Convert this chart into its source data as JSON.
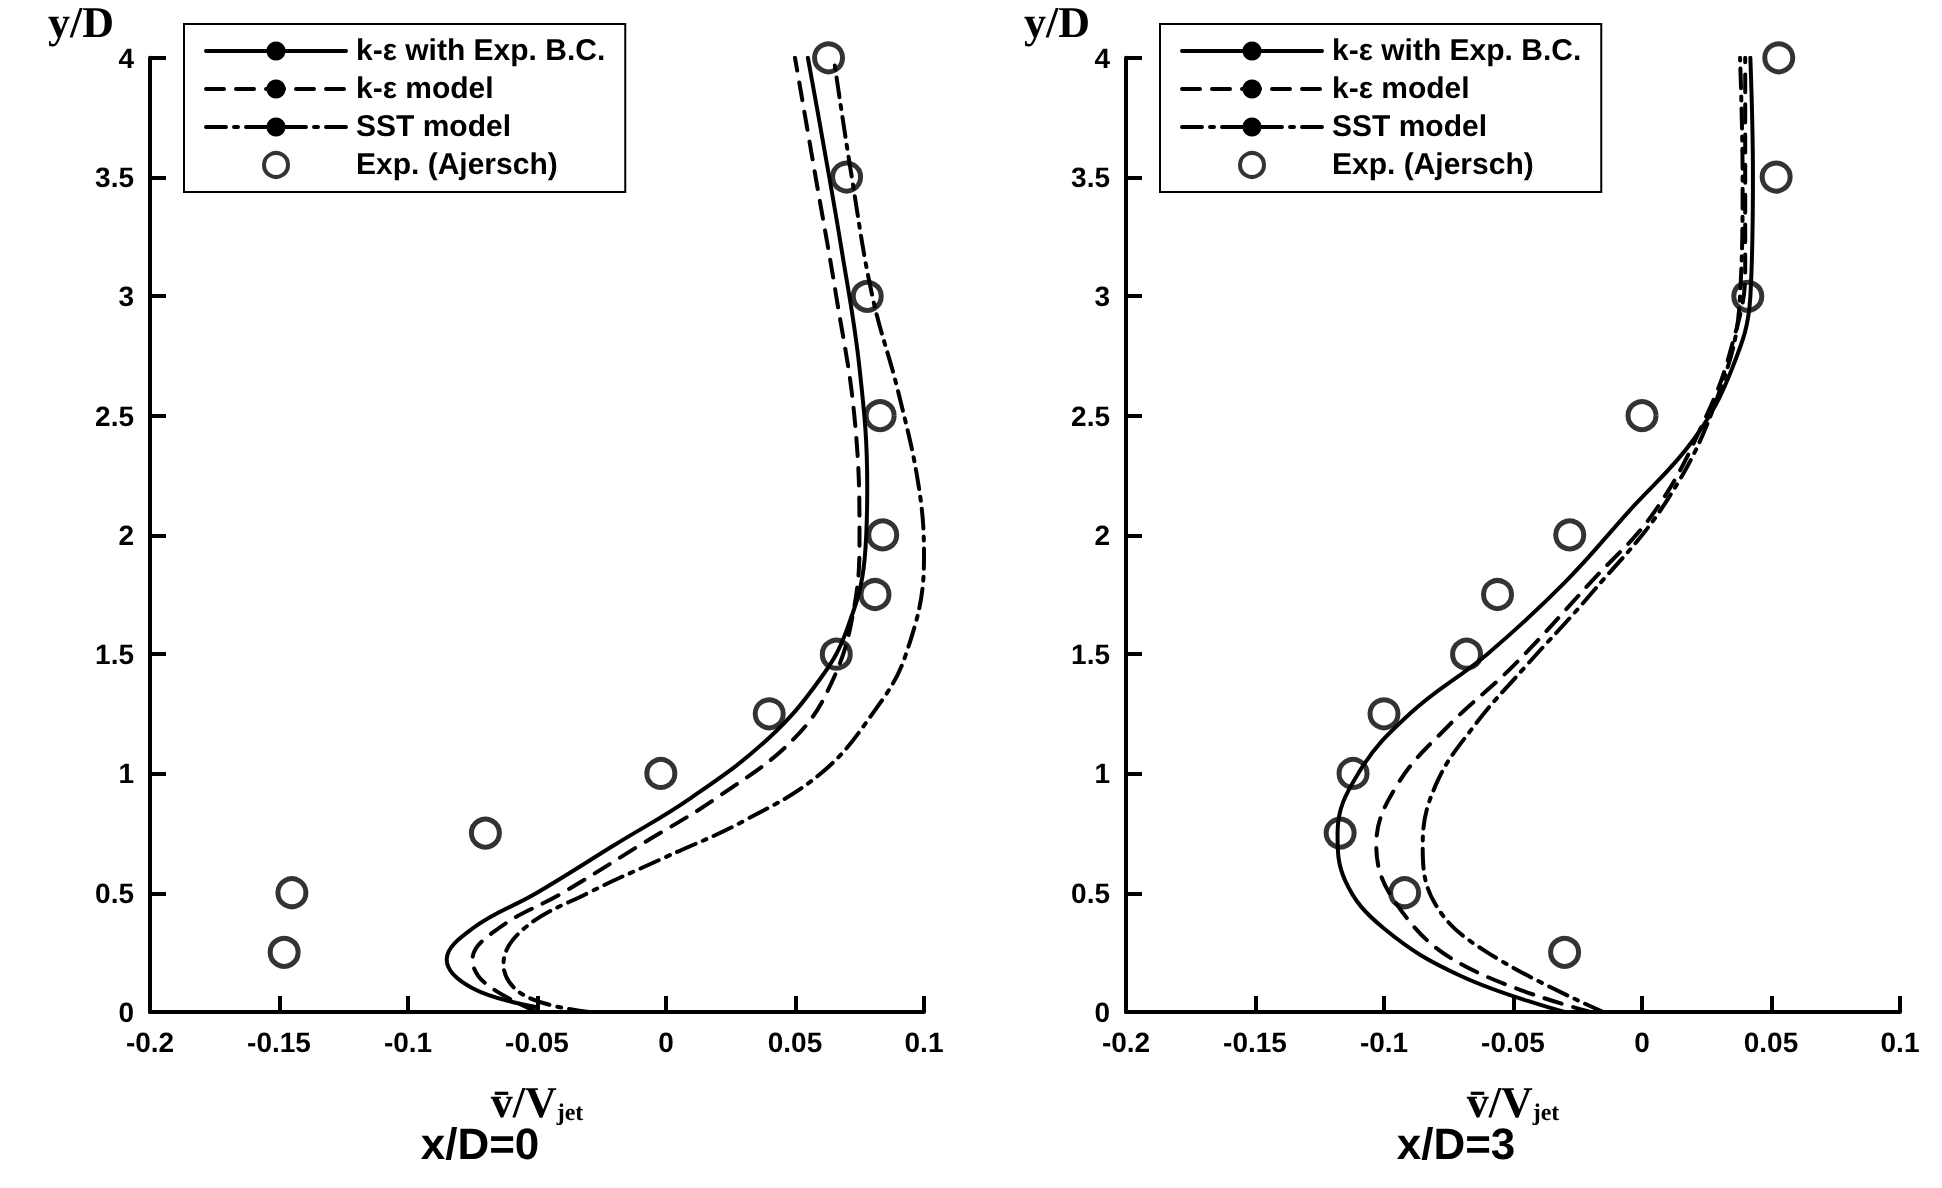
{
  "chart_data": [
    {
      "type": "line",
      "title": "x/D=0",
      "xlabel": "v̄/V$_{jet}$",
      "ylabel": "y/D",
      "xlim": [
        -0.2,
        0.1
      ],
      "xticks": [
        -0.2,
        -0.15,
        -0.1,
        -0.05,
        0,
        0.05,
        0.1
      ],
      "ylim": [
        0,
        4
      ],
      "yticks": [
        0,
        0.5,
        1,
        1.5,
        2,
        2.5,
        3,
        3.5,
        4
      ],
      "grid": false,
      "legend": "top left",
      "series": [
        {
          "name": "k-ε with Exp. B.C.",
          "color": "#000000",
          "line_style": "solid",
          "marker": "none",
          "x": [
            -0.05,
            -0.075,
            -0.085,
            -0.075,
            -0.05,
            -0.02,
            0.01,
            0.04,
            0.06,
            0.07,
            0.077,
            0.078,
            0.075,
            0.068,
            0.06,
            0.055
          ],
          "values": [
            0.02,
            0.1,
            0.22,
            0.35,
            0.5,
            0.7,
            0.9,
            1.15,
            1.4,
            1.6,
            1.9,
            2.2,
            2.7,
            3.2,
            3.7,
            4.0
          ]
        },
        {
          "name": "k-ε model",
          "color": "#000000",
          "line_style": "dashed",
          "marker": "none",
          "x": [
            -0.05,
            -0.07,
            -0.075,
            -0.065,
            -0.04,
            -0.01,
            0.02,
            0.05,
            0.065,
            0.073,
            0.075,
            0.073,
            0.066,
            0.058,
            0.05
          ],
          "values": [
            0.0,
            0.12,
            0.22,
            0.35,
            0.5,
            0.7,
            0.9,
            1.15,
            1.4,
            1.7,
            2.0,
            2.5,
            3.0,
            3.5,
            4.0
          ]
        },
        {
          "name": "SST model",
          "color": "#000000",
          "line_style": "dashdot",
          "marker": "none",
          "x": [
            -0.03,
            -0.055,
            -0.063,
            -0.055,
            -0.03,
            0.0,
            0.03,
            0.06,
            0.08,
            0.093,
            0.1,
            0.098,
            0.09,
            0.08,
            0.072,
            0.065
          ],
          "values": [
            0.0,
            0.07,
            0.2,
            0.35,
            0.5,
            0.65,
            0.8,
            1.0,
            1.25,
            1.5,
            1.9,
            2.2,
            2.6,
            3.0,
            3.5,
            4.0
          ]
        },
        {
          "name": "Exp. (Ajersch)",
          "type": "scatter",
          "color": "#000000",
          "marker": "circle",
          "x": [
            -0.148,
            -0.145,
            -0.07,
            -0.002,
            0.04,
            0.066,
            0.081,
            0.084,
            0.083,
            0.078,
            0.07,
            0.063
          ],
          "values": [
            0.25,
            0.5,
            0.75,
            1.0,
            1.25,
            1.5,
            1.75,
            2.0,
            2.5,
            3.0,
            3.5,
            4.0
          ]
        }
      ]
    },
    {
      "type": "line",
      "title": "x/D=3",
      "xlabel": "v̄/V$_{jet}$",
      "ylabel": "y/D",
      "xlim": [
        -0.2,
        0.1
      ],
      "xticks": [
        -0.2,
        -0.15,
        -0.1,
        -0.05,
        0,
        0.05,
        0.1
      ],
      "ylim": [
        0,
        4
      ],
      "yticks": [
        0,
        0.5,
        1,
        1.5,
        2,
        2.5,
        3,
        3.5,
        4
      ],
      "grid": false,
      "legend": "top left",
      "series": [
        {
          "name": "k-ε with Exp. B.C.",
          "color": "#000000",
          "line_style": "solid",
          "marker": "none",
          "x": [
            -0.03,
            -0.07,
            -0.1,
            -0.115,
            -0.118,
            -0.11,
            -0.09,
            -0.06,
            -0.03,
            -0.005,
            0.02,
            0.035,
            0.042,
            0.043,
            0.042
          ],
          "values": [
            0.0,
            0.15,
            0.35,
            0.55,
            0.75,
            1.0,
            1.25,
            1.5,
            1.8,
            2.1,
            2.4,
            2.7,
            3.0,
            3.5,
            4.0
          ]
        },
        {
          "name": "k-ε model",
          "color": "#000000",
          "line_style": "dashed",
          "marker": "none",
          "x": [
            -0.02,
            -0.07,
            -0.095,
            -0.103,
            -0.095,
            -0.075,
            -0.05,
            -0.02,
            0.005,
            0.025,
            0.035,
            0.04,
            0.04,
            0.04
          ],
          "values": [
            0.0,
            0.2,
            0.45,
            0.7,
            0.95,
            1.2,
            1.45,
            1.8,
            2.1,
            2.5,
            2.8,
            3.1,
            3.5,
            4.0
          ]
        },
        {
          "name": "SST model",
          "color": "#000000",
          "line_style": "dashdot",
          "marker": "none",
          "x": [
            -0.015,
            -0.06,
            -0.08,
            -0.085,
            -0.08,
            -0.065,
            -0.045,
            -0.02,
            0.01,
            0.03,
            0.038,
            0.039,
            0.038
          ],
          "values": [
            0.0,
            0.25,
            0.45,
            0.7,
            0.95,
            1.2,
            1.45,
            1.75,
            2.15,
            2.6,
            3.0,
            3.5,
            4.0
          ]
        },
        {
          "name": "Exp. (Ajersch)",
          "type": "scatter",
          "color": "#000000",
          "marker": "circle",
          "x": [
            -0.03,
            -0.092,
            -0.117,
            -0.112,
            -0.1,
            -0.068,
            -0.056,
            -0.028,
            0.0,
            0.041,
            0.052,
            0.053
          ],
          "values": [
            0.25,
            0.5,
            0.75,
            1.0,
            1.25,
            1.5,
            1.75,
            2.0,
            2.5,
            3.0,
            3.5,
            4.0
          ]
        }
      ]
    }
  ]
}
